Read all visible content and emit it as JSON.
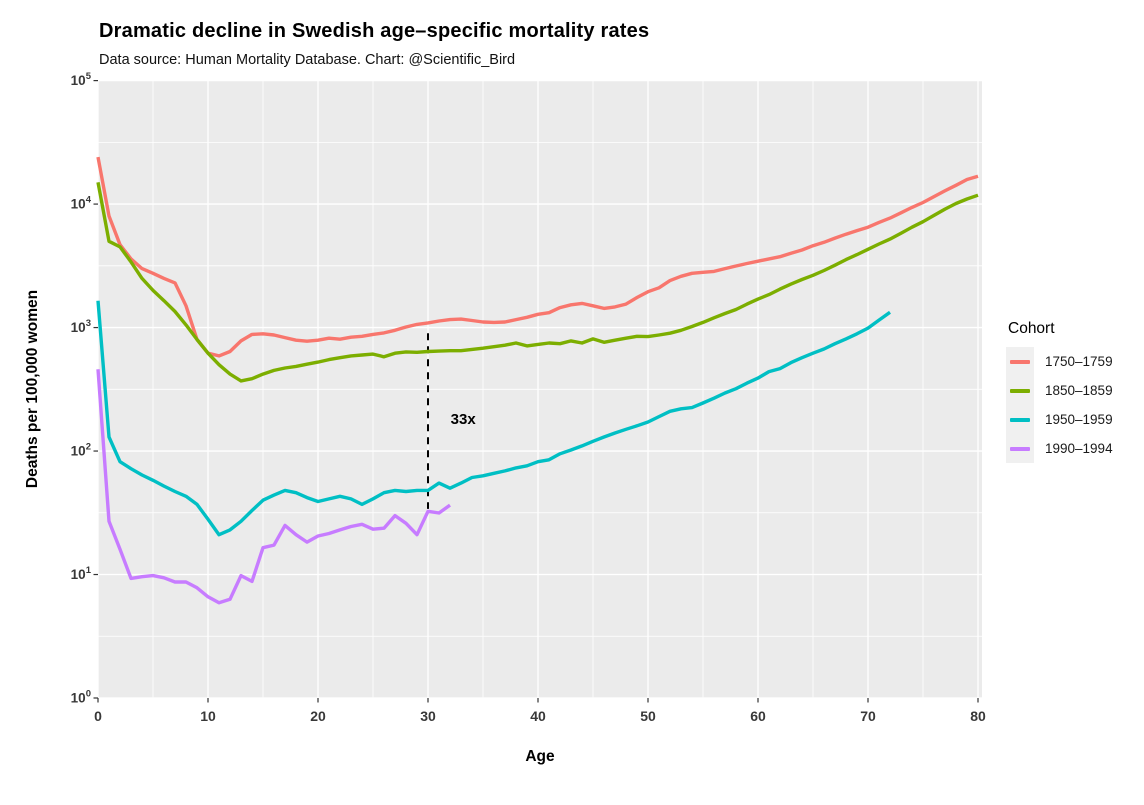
{
  "chart_data": {
    "type": "line",
    "title": "Dramatic decline in Swedish age–specific mortality rates",
    "subtitle": "Data source: Human Mortality Database. Chart: @Scientific_Bird",
    "xlabel": "Age",
    "ylabel": "Deaths per 100,000 women",
    "xlim": [
      0,
      80
    ],
    "ylim": [
      1,
      100000
    ],
    "y_scale": "log10",
    "x_ticks": [
      0,
      10,
      20,
      30,
      40,
      50,
      60,
      70,
      80
    ],
    "x_minor_ticks": [
      5,
      15,
      25,
      35,
      45,
      55,
      65,
      75
    ],
    "y_tick_exponents": [
      0,
      1,
      2,
      3,
      4,
      5
    ],
    "y_minor_exponents": [
      0.5,
      1.5,
      2.5,
      3.5,
      4.5
    ],
    "grid": true,
    "legend_title": "Cohort",
    "legend_position": "right",
    "annotation": {
      "label": "33x",
      "label_age": 33.2,
      "label_value": 182,
      "line_age": 30,
      "line_value_from": 900,
      "line_value_to": 34
    },
    "series": [
      {
        "name": "1750–1759",
        "color": "#F8766D",
        "age_start": 0,
        "age_step": 1,
        "values": [
          24000,
          8000,
          4700,
          3600,
          3000,
          2750,
          2500,
          2300,
          1500,
          800,
          620,
          590,
          640,
          780,
          880,
          890,
          870,
          830,
          790,
          775,
          790,
          820,
          805,
          835,
          850,
          880,
          905,
          950,
          1010,
          1060,
          1090,
          1130,
          1160,
          1170,
          1140,
          1110,
          1100,
          1110,
          1160,
          1210,
          1280,
          1320,
          1450,
          1530,
          1570,
          1500,
          1430,
          1470,
          1550,
          1750,
          1950,
          2100,
          2400,
          2600,
          2750,
          2800,
          2850,
          3000,
          3150,
          3300,
          3450,
          3600,
          3750,
          4000,
          4250,
          4600,
          4900,
          5300,
          5700,
          6100,
          6500,
          7100,
          7700,
          8500,
          9400,
          10300,
          11500,
          12800,
          14200,
          15800,
          16800
        ]
      },
      {
        "name": "1850–1859",
        "color": "#7CAE00",
        "age_start": 0,
        "age_step": 1,
        "values": [
          15000,
          5000,
          4500,
          3400,
          2500,
          2000,
          1650,
          1350,
          1050,
          800,
          620,
          500,
          420,
          370,
          385,
          420,
          450,
          470,
          485,
          505,
          525,
          550,
          570,
          590,
          600,
          610,
          580,
          620,
          635,
          630,
          640,
          645,
          650,
          650,
          665,
          680,
          700,
          720,
          750,
          710,
          730,
          750,
          740,
          780,
          750,
          810,
          760,
          790,
          820,
          850,
          845,
          870,
          900,
          950,
          1020,
          1100,
          1200,
          1300,
          1400,
          1550,
          1700,
          1850,
          2050,
          2250,
          2450,
          2650,
          2900,
          3200,
          3550,
          3900,
          4300,
          4750,
          5200,
          5800,
          6500,
          7200,
          8100,
          9100,
          10100,
          11000,
          11800
        ]
      },
      {
        "name": "1950–1959",
        "color": "#00BFC4",
        "age_start": 0,
        "age_step": 1,
        "values": [
          1650,
          130,
          82,
          72,
          64,
          58,
          52,
          47,
          43,
          37,
          28,
          21,
          23,
          27,
          33,
          40,
          44,
          48,
          46,
          42,
          39,
          41,
          43,
          41,
          37,
          41,
          46,
          48,
          47,
          48,
          48,
          55,
          50,
          55,
          61,
          63,
          66,
          69,
          73,
          76,
          82,
          85,
          95,
          102,
          110,
          120,
          130,
          140,
          150,
          160,
          172,
          190,
          210,
          220,
          225,
          245,
          268,
          295,
          320,
          355,
          390,
          440,
          465,
          520,
          570,
          620,
          670,
          740,
          810,
          890,
          990,
          1150,
          1330
        ]
      },
      {
        "name": "1990–1994",
        "color": "#C77CFF",
        "age_start": 0,
        "age_step": 1,
        "values": [
          460,
          27,
          16,
          9.3,
          9.6,
          9.8,
          9.4,
          8.7,
          8.7,
          7.8,
          6.6,
          5.9,
          6.3,
          9.8,
          8.8,
          16.5,
          17.3,
          25,
          21,
          18.3,
          20.5,
          21.5,
          23,
          24.5,
          25.5,
          23.3,
          23.7,
          30,
          26,
          21,
          32.5,
          31.5,
          36.5
        ]
      }
    ]
  },
  "colors": {
    "panel_bg": "#EBEBEB",
    "grid_major": "#FFFFFF",
    "grid_minor": "#FFFFFF",
    "axis_text": "#383838",
    "tick_mark": "#333333",
    "legend_key_bg": "#F0F0F0",
    "annotation": "#000000"
  }
}
